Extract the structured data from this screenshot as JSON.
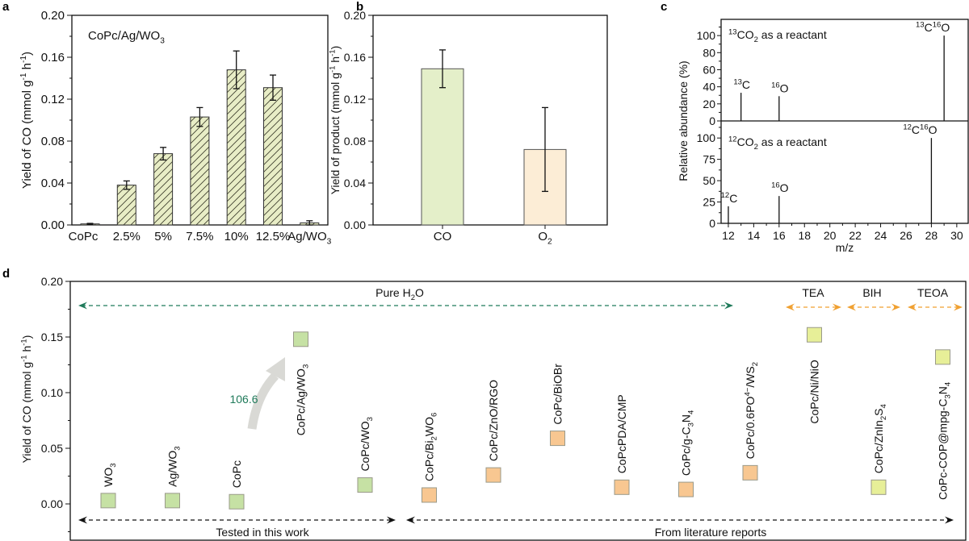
{
  "panel_labels": [
    "a",
    "b",
    "c",
    "d"
  ],
  "chart_data": [
    {
      "panel": "a",
      "type": "bar",
      "annotation": "CoPc/Ag/WO_{3}",
      "categories": [
        "CoPc",
        "2.5%",
        "5%",
        "7.5%",
        "10%",
        "12.5%",
        "Ag/WO_{3}"
      ],
      "values": [
        0.001,
        0.038,
        0.068,
        0.103,
        0.148,
        0.131,
        0.002
      ],
      "errors": [
        0.0005,
        0.004,
        0.006,
        0.009,
        0.018,
        0.012,
        0.002
      ],
      "xlabel": "",
      "ylabel": "Yield of CO (mmol g^{-1} h^{-1})",
      "ylim": [
        0,
        0.2
      ],
      "yticks": [
        "0.00",
        "0.04",
        "0.08",
        "0.12",
        "0.16",
        "0.20"
      ],
      "bar_color": "#e8edc6",
      "hatched": true
    },
    {
      "panel": "b",
      "type": "bar",
      "categories": [
        "CO",
        "O_{2}"
      ],
      "values": [
        0.149,
        0.072
      ],
      "errors": [
        0.018,
        0.04
      ],
      "xlabel": "",
      "ylabel": "Yield of product (mmol g^{-1} h^{-1})",
      "ylim": [
        0,
        0.2
      ],
      "yticks": [
        "0.00",
        "0.04",
        "0.08",
        "0.12",
        "0.16",
        "0.20"
      ],
      "bar_colors": [
        "#e4efc9",
        "#fcedd6"
      ]
    },
    {
      "panel": "c",
      "type": "stem",
      "xlabel": "m/z",
      "ylabel": "Relative abundance (%)",
      "xlim": [
        11.43,
        30.9
      ],
      "xticks": [
        "12",
        "14",
        "16",
        "18",
        "20",
        "22",
        "24",
        "26",
        "28",
        "30"
      ],
      "subplots": [
        {
          "annotation": "^{13}CO_{2} as a reactant",
          "x": [
            13,
            16,
            29
          ],
          "y": [
            33,
            29,
            100
          ],
          "peak_labels": [
            "^{13}C",
            "^{16}O",
            "^{13}C^{16}O"
          ],
          "ylim": [
            0,
            119
          ],
          "yticks": [
            "0",
            "20",
            "40",
            "60",
            "80",
            "100"
          ]
        },
        {
          "annotation": "^{12}CO_{2} as a reactant",
          "x": [
            12,
            16,
            28
          ],
          "y": [
            20,
            32,
            100
          ],
          "peak_labels": [
            "^{12}C",
            "^{16}O",
            "^{12}C^{16}O"
          ],
          "ylim": [
            0,
            120
          ],
          "yticks": [
            "0",
            "25",
            "50",
            "75",
            "100"
          ]
        }
      ]
    },
    {
      "panel": "d",
      "type": "scatter",
      "ylabel": "Yield of CO (mmol g^{-1} h^{-1})",
      "ylim": [
        -0.0326,
        0.2
      ],
      "yticks": [
        "0.00",
        "0.05",
        "0.10",
        "0.15",
        "0.20"
      ],
      "categories": [
        "WO_{3}",
        "Ag/WO_{3}",
        "CoPc",
        "CoPc/Ag/WO_{3}",
        "CoPc/WO_{3}",
        "CoPc/Bi_{2}WO_{6}",
        "CoPc/ZnO/RGO",
        "CoPc/BiOBr",
        "CoPcPDA/CMP",
        "CoPc/g-C_{3}N_{4}",
        "CoPc/0.6PO^{4−}/WS_{2}",
        "CoPc/Ni/NiO",
        "CoPc/ZnIn_{2}S_{4}",
        "CoPc-COP@mpg-C_{3}N_{4}"
      ],
      "values": [
        0.003,
        0.003,
        0.002,
        0.148,
        0.017,
        0.008,
        0.026,
        0.059,
        0.015,
        0.013,
        0.028,
        0.152,
        0.015,
        0.132
      ],
      "groups": [
        "this-work",
        "this-work",
        "this-work",
        "this-work",
        "this-work",
        "literature",
        "literature",
        "literature",
        "literature",
        "literature",
        "literature",
        "literature-sacrificial",
        "literature-sacrificial",
        "literature-sacrificial"
      ],
      "group_colors": {
        "this-work": "#c6e1a4",
        "literature": "#f8c791",
        "literature-sacrificial": "#e7ef98"
      },
      "enhancement_label": "106.6",
      "enhancement_color": "#1f7a5a",
      "conditions": [
        {
          "label": "Pure H_{2}O",
          "color": "#1f7a5a"
        },
        {
          "label": "TEA",
          "color": "#f0a030"
        },
        {
          "label": "BIH",
          "color": "#f0a030"
        },
        {
          "label": "TEOA",
          "color": "#f0a030"
        }
      ],
      "sources": [
        {
          "label": "Tested in this work"
        },
        {
          "label": "From literature reports"
        }
      ]
    }
  ]
}
